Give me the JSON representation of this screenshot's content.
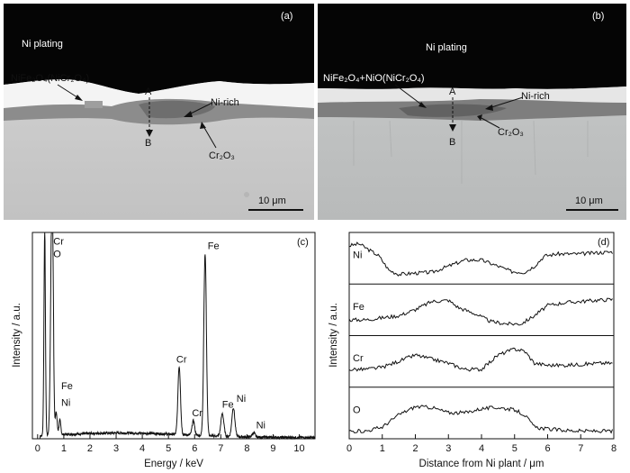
{
  "figure": {
    "panel_a": {
      "tag": "(a)",
      "labels": {
        "ni_plating": "Ni plating",
        "oxide": "NiFe₂O₄(NiCr₂O₄)",
        "point_a": "A",
        "point_b": "B",
        "ni_rich": "Ni-rich",
        "chromia": "Cr₂O₃"
      },
      "scale_bar": "10 μm"
    },
    "panel_b": {
      "tag": "(b)",
      "labels": {
        "ni_plating": "Ni plating",
        "oxide": "NiFe₂O₄+NiO(NiCr₂O₄)",
        "point_a": "A",
        "point_b": "B",
        "ni_rich": "Ni-rich",
        "chromia": "Cr₂O₃"
      },
      "scale_bar": "10 μm"
    }
  },
  "chart_data": [
    {
      "id": "c",
      "tag": "(c)",
      "type": "line",
      "xlabel": "Energy / keV",
      "ylabel": "Intensity / a.u.",
      "xlim": [
        -0.2,
        10.6
      ],
      "ylim": [
        0,
        100
      ],
      "xticks": [
        0,
        1,
        2,
        3,
        4,
        5,
        6,
        7,
        8,
        9,
        10
      ],
      "peaks": [
        {
          "x": 0.27,
          "height": 100,
          "width": 0.04
        },
        {
          "x": 0.53,
          "height": 86,
          "width": 0.06
        },
        {
          "x": 0.58,
          "height": 55,
          "width": 0.05
        },
        {
          "x": 0.71,
          "height": 11,
          "width": 0.05
        },
        {
          "x": 0.85,
          "height": 7,
          "width": 0.05
        },
        {
          "x": 5.41,
          "height": 33,
          "width": 0.07
        },
        {
          "x": 5.95,
          "height": 7,
          "width": 0.07
        },
        {
          "x": 6.4,
          "height": 88,
          "width": 0.07
        },
        {
          "x": 7.06,
          "height": 11,
          "width": 0.08
        },
        {
          "x": 7.48,
          "height": 14,
          "width": 0.08
        },
        {
          "x": 8.26,
          "height": 2,
          "width": 0.08
        }
      ],
      "peak_labels": [
        {
          "text": "Cr",
          "x": 0.6,
          "y": 94
        },
        {
          "text": "O",
          "x": 0.6,
          "y": 88
        },
        {
          "text": "Fe",
          "x": 0.9,
          "y": 24
        },
        {
          "text": "Ni",
          "x": 0.9,
          "y": 16
        },
        {
          "text": "Cr",
          "x": 5.3,
          "y": 37
        },
        {
          "text": "Cr",
          "x": 5.9,
          "y": 11
        },
        {
          "text": "Fe",
          "x": 6.5,
          "y": 92
        },
        {
          "text": "Fe",
          "x": 7.05,
          "y": 15
        },
        {
          "text": "Ni",
          "x": 7.6,
          "y": 18
        },
        {
          "text": "Ni",
          "x": 8.35,
          "y": 5
        }
      ]
    },
    {
      "id": "d",
      "tag": "(d)",
      "type": "line",
      "xlabel": "Distance from Ni plant / μm",
      "ylabel": "Intensity / a.u.",
      "xlim": [
        0,
        8
      ],
      "xticks": [
        0,
        1,
        2,
        3,
        4,
        5,
        6,
        7,
        8
      ],
      "series": [
        {
          "name": "Ni",
          "points": [
            [
              0,
              0.85
            ],
            [
              0.3,
              0.9
            ],
            [
              0.6,
              0.75
            ],
            [
              0.9,
              0.6
            ],
            [
              1.2,
              0.25
            ],
            [
              1.5,
              0.15
            ],
            [
              2,
              0.18
            ],
            [
              2.5,
              0.2
            ],
            [
              3,
              0.35
            ],
            [
              3.5,
              0.5
            ],
            [
              4,
              0.5
            ],
            [
              4.5,
              0.35
            ],
            [
              4.9,
              0.22
            ],
            [
              5.3,
              0.2
            ],
            [
              5.6,
              0.35
            ],
            [
              5.9,
              0.6
            ],
            [
              6.3,
              0.65
            ],
            [
              7,
              0.65
            ],
            [
              7.5,
              0.68
            ],
            [
              8,
              0.7
            ]
          ]
        },
        {
          "name": "Fe",
          "points": [
            [
              0,
              0.3
            ],
            [
              0.5,
              0.3
            ],
            [
              1,
              0.35
            ],
            [
              1.5,
              0.4
            ],
            [
              2,
              0.55
            ],
            [
              2.5,
              0.75
            ],
            [
              3,
              0.78
            ],
            [
              3.3,
              0.6
            ],
            [
              3.8,
              0.45
            ],
            [
              4.3,
              0.25
            ],
            [
              4.8,
              0.2
            ],
            [
              5.2,
              0.2
            ],
            [
              5.6,
              0.4
            ],
            [
              6,
              0.65
            ],
            [
              6.5,
              0.72
            ],
            [
              7,
              0.75
            ],
            [
              7.5,
              0.78
            ],
            [
              8,
              0.8
            ]
          ]
        },
        {
          "name": "Cr",
          "points": [
            [
              0,
              0.35
            ],
            [
              0.5,
              0.35
            ],
            [
              1,
              0.4
            ],
            [
              1.5,
              0.55
            ],
            [
              2,
              0.7
            ],
            [
              2.5,
              0.6
            ],
            [
              3,
              0.5
            ],
            [
              3.5,
              0.35
            ],
            [
              4,
              0.35
            ],
            [
              4.5,
              0.7
            ],
            [
              5,
              0.85
            ],
            [
              5.3,
              0.8
            ],
            [
              5.6,
              0.5
            ],
            [
              6,
              0.45
            ],
            [
              6.5,
              0.45
            ],
            [
              7,
              0.47
            ],
            [
              7.5,
              0.5
            ],
            [
              8,
              0.5
            ]
          ]
        },
        {
          "name": "O",
          "points": [
            [
              0,
              0.1
            ],
            [
              0.5,
              0.1
            ],
            [
              1,
              0.2
            ],
            [
              1.5,
              0.5
            ],
            [
              2,
              0.7
            ],
            [
              2.5,
              0.68
            ],
            [
              3,
              0.55
            ],
            [
              3.5,
              0.55
            ],
            [
              4,
              0.65
            ],
            [
              4.5,
              0.68
            ],
            [
              5,
              0.62
            ],
            [
              5.3,
              0.5
            ],
            [
              5.6,
              0.2
            ],
            [
              6,
              0.15
            ],
            [
              6.5,
              0.12
            ],
            [
              7,
              0.1
            ],
            [
              7.5,
              0.1
            ],
            [
              8,
              0.1
            ]
          ]
        }
      ]
    }
  ]
}
